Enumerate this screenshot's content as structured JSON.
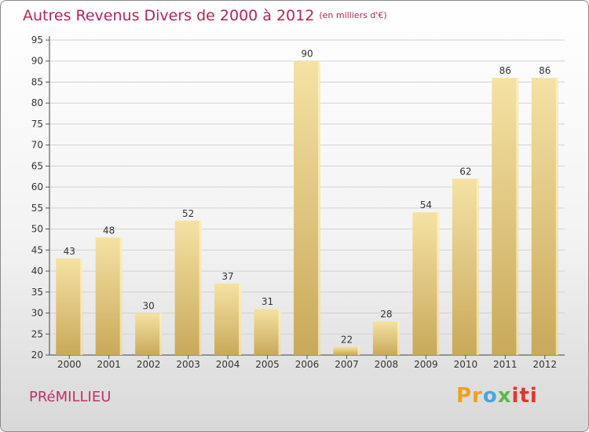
{
  "title": "Autres Revenus Divers de 2000 à 2012",
  "title_unit": "(en milliers d'€)",
  "commune": "PRéMILLIEU",
  "logo": {
    "text": "Proxiti",
    "colors": [
      "#f0a020",
      "#4aa3df",
      "#5fb84a",
      "#e2352b"
    ]
  },
  "colors": {
    "bar": "#e8cf84",
    "bar_light": "#f5e2a4",
    "bar_dark": "#c9a95a",
    "title": "#b5245a"
  },
  "chart_data": {
    "type": "bar",
    "title": "Autres Revenus Divers de 2000 à 2012",
    "categories": [
      "2000",
      "2001",
      "2002",
      "2003",
      "2004",
      "2005",
      "2006",
      "2007",
      "2008",
      "2009",
      "2010",
      "2011",
      "2012"
    ],
    "values": [
      43,
      48,
      30,
      52,
      37,
      31,
      90,
      22,
      28,
      54,
      62,
      86,
      86
    ],
    "ylim": [
      20,
      95
    ],
    "yticks": [
      20,
      25,
      30,
      35,
      40,
      45,
      50,
      55,
      60,
      65,
      70,
      75,
      80,
      85,
      90,
      95
    ],
    "grid": true,
    "legend": "none"
  }
}
